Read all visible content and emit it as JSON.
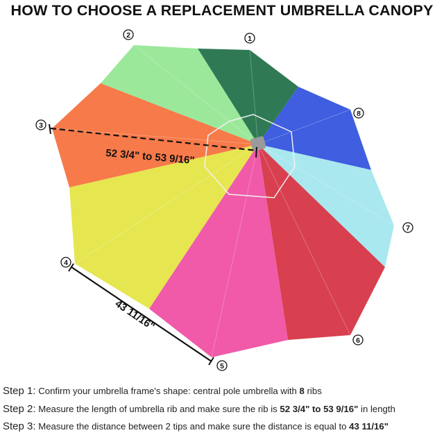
{
  "title": "HOW TO CHOOSE A REPLACEMENT UMBRELLA CANOPY",
  "diagram": {
    "tip_labels": [
      "1",
      "2",
      "3",
      "4",
      "5",
      "6",
      "7",
      "8"
    ],
    "rib_length_label": "52 3/4\" to 53 9/16\"",
    "tip_distance_label": "43 11/16\"",
    "panel_colors": {
      "light_green": "#9be89a",
      "dark_green": "#2f7a55",
      "blue": "#3f5ee0",
      "cyan": "#a9e8ee",
      "red": "#d8404f",
      "pink": "#f05aa8",
      "yellow": "#e6e650",
      "orange": "#f77a4a"
    }
  },
  "steps": [
    {
      "label": "Step 1:",
      "text": " Confirm your umbrella frame's shape: central pole umbrella with ",
      "bold": "8",
      "after": " ribs"
    },
    {
      "label": "Step 2:",
      "text": " Measure the length of umbrella rib and make sure the rib is ",
      "bold": "52 3/4\" to 53 9/16\"",
      "after": " in length"
    },
    {
      "label": "Step 3:",
      "text": " Measure the distance between 2 tips and make sure the distance is equal to ",
      "bold": "43 11/16\"",
      "after": ""
    }
  ]
}
